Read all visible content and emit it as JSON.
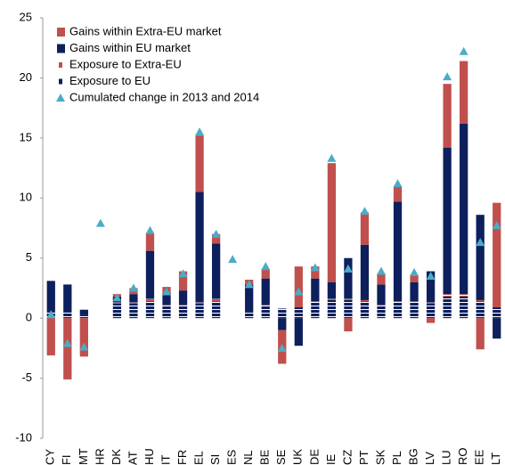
{
  "chart_data": {
    "type": "bar",
    "categories": [
      "CY",
      "FI",
      "MT",
      "HR",
      "DK",
      "AT",
      "HU",
      "IT",
      "FR",
      "EL",
      "SI",
      "ES",
      "NL",
      "BE",
      "SE",
      "UK",
      "DE",
      "IE",
      "CZ",
      "PT",
      "SK",
      "PL",
      "BG",
      "LV",
      "LU",
      "RO",
      "EE",
      "LT"
    ],
    "series": [
      {
        "name": "Gains within Extra-EU market",
        "color": "#c0504d",
        "style": "solid",
        "values": [
          -3.1,
          -5.1,
          -3.2,
          0,
          0.2,
          0.5,
          1.5,
          0.5,
          1.6,
          4.7,
          0.8,
          0,
          0.4,
          0.8,
          -2.8,
          3.4,
          1.0,
          9.9,
          -1.1,
          2.7,
          0.9,
          1.3,
          0.6,
          -0.4,
          5.3,
          5.2,
          -2.6,
          8.7
        ]
      },
      {
        "name": "Gains within EU market",
        "color": "#0d1f5c",
        "style": "solid",
        "values": [
          2.6,
          2.3,
          0.4,
          0,
          0.5,
          0.7,
          4.0,
          1.0,
          1.2,
          9.2,
          4.6,
          0,
          2.2,
          2.2,
          -1.0,
          -2.3,
          1.9,
          1.4,
          3.4,
          4.6,
          1.7,
          8.3,
          1.6,
          2.6,
          12.2,
          14.2,
          7.1,
          -1.7
        ]
      },
      {
        "name": "Exposure to Extra-EU",
        "color": "#c0504d",
        "style": "dashed",
        "values": [
          0,
          0,
          0,
          0,
          0.1,
          0.1,
          0.2,
          0.1,
          0.1,
          0.1,
          0.2,
          0,
          0,
          0.1,
          0,
          0,
          0.1,
          0.1,
          0.1,
          0.1,
          0.1,
          0.1,
          0.1,
          0.1,
          0.2,
          0.2,
          0.1,
          0
        ]
      },
      {
        "name": "Exposure to EU",
        "color": "#0d1f5c",
        "style": "dashed",
        "values": [
          0.5,
          0.5,
          0.3,
          0,
          1.2,
          1.2,
          1.4,
          1.0,
          1.0,
          1.2,
          1.4,
          0,
          0.6,
          1.0,
          0.8,
          0.9,
          1.3,
          1.5,
          1.5,
          1.4,
          1.0,
          1.3,
          1.3,
          1.2,
          1.8,
          1.8,
          1.4,
          0.9
        ]
      },
      {
        "name": "Cumulated change in 2013 and 2014",
        "color": "#4bacc6",
        "style": "marker",
        "values": [
          0.3,
          -2.1,
          -2.4,
          7.9,
          1.7,
          2.5,
          7.3,
          2.2,
          3.7,
          15.5,
          7.0,
          4.9,
          2.8,
          4.3,
          -2.5,
          2.2,
          4.2,
          13.3,
          4.1,
          8.9,
          3.9,
          11.2,
          3.8,
          3.5,
          20.1,
          22.2,
          6.3,
          7.7
        ]
      }
    ],
    "ylim": [
      -10,
      25
    ],
    "yticks": [
      -10,
      -5,
      0,
      5,
      10,
      15,
      20,
      25
    ]
  }
}
